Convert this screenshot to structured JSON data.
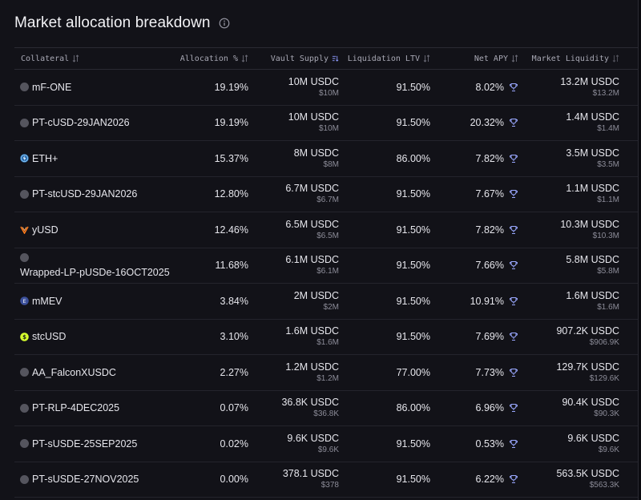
{
  "header": {
    "title": "Market allocation breakdown",
    "info_icon": "info-icon"
  },
  "columns": {
    "collateral": "Collateral",
    "allocation": "Allocation %",
    "vault_supply": "Vault Supply",
    "liquidation_ltv": "Liquidation LTV",
    "net_apy": "Net APY",
    "market_liquidity": "Market Liquidity"
  },
  "colors": {
    "background": "#121218",
    "trophy": "#9aa8ff",
    "eth_icon": "#5bb0f0",
    "yusd_icon": "#ff7a1a",
    "mmev_icon": "#4a64b8",
    "stcusd_icon": "#d6ff2e"
  },
  "rows": [
    {
      "collateral": "mF-ONE",
      "icon": "grey-circle-icon",
      "allocation": "19.19%",
      "vault_supply": "10M USDC",
      "vault_supply_usd": "$10M",
      "ltv": "91.50%",
      "apy": "8.02%",
      "liquidity": "13.2M USDC",
      "liquidity_usd": "$13.2M"
    },
    {
      "collateral": "PT-cUSD-29JAN2026",
      "icon": "grey-circle-icon",
      "allocation": "19.19%",
      "vault_supply": "10M USDC",
      "vault_supply_usd": "$10M",
      "ltv": "91.50%",
      "apy": "20.32%",
      "liquidity": "1.4M USDC",
      "liquidity_usd": "$1.4M"
    },
    {
      "collateral": "ETH+",
      "icon": "eth-plus-icon",
      "allocation": "15.37%",
      "vault_supply": "8M USDC",
      "vault_supply_usd": "$8M",
      "ltv": "86.00%",
      "apy": "7.82%",
      "liquidity": "3.5M USDC",
      "liquidity_usd": "$3.5M"
    },
    {
      "collateral": "PT-stcUSD-29JAN2026",
      "icon": "grey-circle-icon",
      "allocation": "12.80%",
      "vault_supply": "6.7M USDC",
      "vault_supply_usd": "$6.7M",
      "ltv": "91.50%",
      "apy": "7.67%",
      "liquidity": "1.1M USDC",
      "liquidity_usd": "$1.1M"
    },
    {
      "collateral": "yUSD",
      "icon": "yusd-icon",
      "allocation": "12.46%",
      "vault_supply": "6.5M USDC",
      "vault_supply_usd": "$6.5M",
      "ltv": "91.50%",
      "apy": "7.82%",
      "liquidity": "10.3M USDC",
      "liquidity_usd": "$10.3M"
    },
    {
      "collateral": "Wrapped-LP-pUSDe-16OCT2025",
      "icon": "grey-circle-icon",
      "allocation": "11.68%",
      "vault_supply": "6.1M USDC",
      "vault_supply_usd": "$6.1M",
      "ltv": "91.50%",
      "apy": "7.66%",
      "liquidity": "5.8M USDC",
      "liquidity_usd": "$5.8M"
    },
    {
      "collateral": "mMEV",
      "icon": "mmev-icon",
      "allocation": "3.84%",
      "vault_supply": "2M USDC",
      "vault_supply_usd": "$2M",
      "ltv": "91.50%",
      "apy": "10.91%",
      "liquidity": "1.6M USDC",
      "liquidity_usd": "$1.6M"
    },
    {
      "collateral": "stcUSD",
      "icon": "stcusd-icon",
      "allocation": "3.10%",
      "vault_supply": "1.6M USDC",
      "vault_supply_usd": "$1.6M",
      "ltv": "91.50%",
      "apy": "7.69%",
      "liquidity": "907.2K USDC",
      "liquidity_usd": "$906.9K"
    },
    {
      "collateral": "AA_FalconXUSDC",
      "icon": "grey-circle-icon",
      "allocation": "2.27%",
      "vault_supply": "1.2M USDC",
      "vault_supply_usd": "$1.2M",
      "ltv": "77.00%",
      "apy": "7.73%",
      "liquidity": "129.7K USDC",
      "liquidity_usd": "$129.6K"
    },
    {
      "collateral": "PT-RLP-4DEC2025",
      "icon": "grey-circle-icon",
      "allocation": "0.07%",
      "vault_supply": "36.8K USDC",
      "vault_supply_usd": "$36.8K",
      "ltv": "86.00%",
      "apy": "6.96%",
      "liquidity": "90.4K USDC",
      "liquidity_usd": "$90.3K"
    },
    {
      "collateral": "PT-sUSDE-25SEP2025",
      "icon": "grey-circle-icon",
      "allocation": "0.02%",
      "vault_supply": "9.6K USDC",
      "vault_supply_usd": "$9.6K",
      "ltv": "91.50%",
      "apy": "0.53%",
      "liquidity": "9.6K USDC",
      "liquidity_usd": "$9.6K"
    },
    {
      "collateral": "PT-sUSDE-27NOV2025",
      "icon": "grey-circle-icon",
      "allocation": "0.00%",
      "vault_supply": "378.1 USDC",
      "vault_supply_usd": "$378",
      "ltv": "91.50%",
      "apy": "6.22%",
      "liquidity": "563.5K USDC",
      "liquidity_usd": "$563.3K"
    }
  ]
}
